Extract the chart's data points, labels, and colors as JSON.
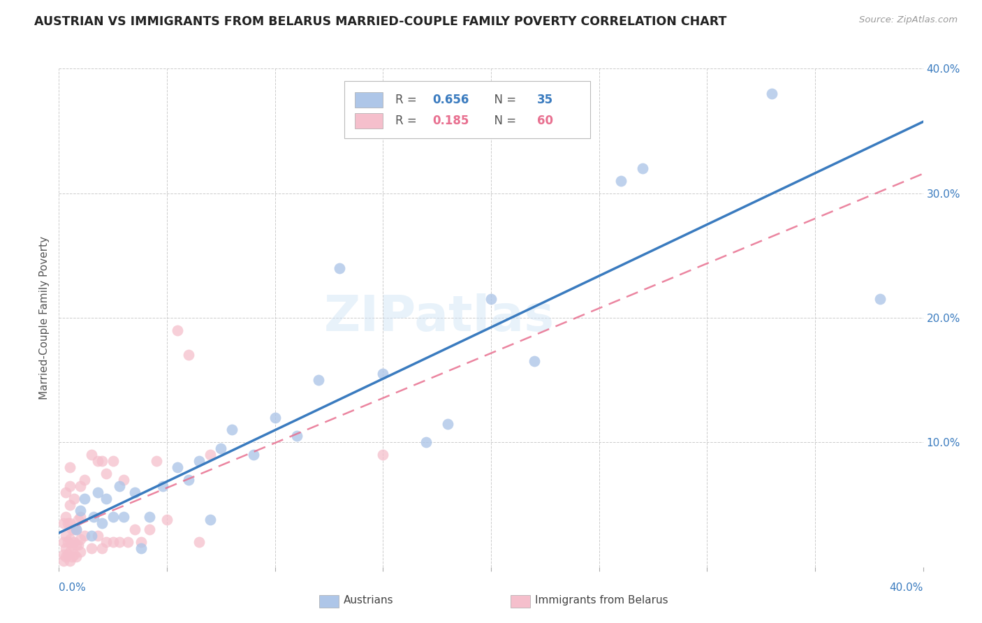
{
  "title": "AUSTRIAN VS IMMIGRANTS FROM BELARUS MARRIED-COUPLE FAMILY POVERTY CORRELATION CHART",
  "source": "Source: ZipAtlas.com",
  "ylabel": "Married-Couple Family Poverty",
  "xlim": [
    0.0,
    0.4
  ],
  "ylim": [
    0.0,
    0.4
  ],
  "xticks": [
    0.0,
    0.05,
    0.1,
    0.15,
    0.2,
    0.25,
    0.3,
    0.35,
    0.4
  ],
  "yticks": [
    0.0,
    0.1,
    0.2,
    0.3,
    0.4
  ],
  "xticklabels_ends": [
    "0.0%",
    "40.0%"
  ],
  "yticklabels": [
    "",
    "10.0%",
    "20.0%",
    "30.0%",
    "40.0%"
  ],
  "blue_R": 0.656,
  "blue_N": 35,
  "blue_dot_color": "#aec6e8",
  "blue_line_color": "#3a7bbf",
  "pink_R": 0.185,
  "pink_N": 60,
  "pink_dot_color": "#f5bfcc",
  "pink_line_color": "#e87090",
  "label_blue": "Austrians",
  "label_pink": "Immigrants from Belarus",
  "blue_x": [
    0.008,
    0.01,
    0.012,
    0.015,
    0.016,
    0.018,
    0.02,
    0.022,
    0.025,
    0.028,
    0.03,
    0.035,
    0.038,
    0.042,
    0.048,
    0.055,
    0.06,
    0.065,
    0.07,
    0.075,
    0.08,
    0.09,
    0.1,
    0.11,
    0.12,
    0.13,
    0.15,
    0.17,
    0.18,
    0.2,
    0.22,
    0.26,
    0.27,
    0.33,
    0.38
  ],
  "blue_y": [
    0.03,
    0.045,
    0.055,
    0.025,
    0.04,
    0.06,
    0.035,
    0.055,
    0.04,
    0.065,
    0.04,
    0.06,
    0.015,
    0.04,
    0.065,
    0.08,
    0.07,
    0.085,
    0.038,
    0.095,
    0.11,
    0.09,
    0.12,
    0.105,
    0.15,
    0.24,
    0.155,
    0.1,
    0.115,
    0.215,
    0.165,
    0.31,
    0.32,
    0.38,
    0.215
  ],
  "pink_x": [
    0.002,
    0.002,
    0.002,
    0.002,
    0.003,
    0.003,
    0.003,
    0.003,
    0.003,
    0.004,
    0.004,
    0.004,
    0.005,
    0.005,
    0.005,
    0.005,
    0.005,
    0.005,
    0.005,
    0.006,
    0.006,
    0.006,
    0.007,
    0.007,
    0.007,
    0.007,
    0.008,
    0.008,
    0.008,
    0.009,
    0.009,
    0.01,
    0.01,
    0.01,
    0.01,
    0.012,
    0.012,
    0.015,
    0.015,
    0.018,
    0.018,
    0.02,
    0.02,
    0.022,
    0.022,
    0.025,
    0.025,
    0.028,
    0.03,
    0.032,
    0.035,
    0.038,
    0.042,
    0.045,
    0.05,
    0.055,
    0.06,
    0.065,
    0.07,
    0.15
  ],
  "pink_y": [
    0.005,
    0.01,
    0.02,
    0.035,
    0.008,
    0.015,
    0.025,
    0.04,
    0.06,
    0.01,
    0.02,
    0.035,
    0.005,
    0.012,
    0.022,
    0.035,
    0.05,
    0.065,
    0.08,
    0.008,
    0.018,
    0.03,
    0.01,
    0.02,
    0.03,
    0.055,
    0.008,
    0.018,
    0.03,
    0.018,
    0.038,
    0.012,
    0.022,
    0.04,
    0.065,
    0.025,
    0.07,
    0.015,
    0.09,
    0.025,
    0.085,
    0.015,
    0.085,
    0.02,
    0.075,
    0.02,
    0.085,
    0.02,
    0.07,
    0.02,
    0.03,
    0.02,
    0.03,
    0.085,
    0.038,
    0.19,
    0.17,
    0.02,
    0.09,
    0.09
  ]
}
